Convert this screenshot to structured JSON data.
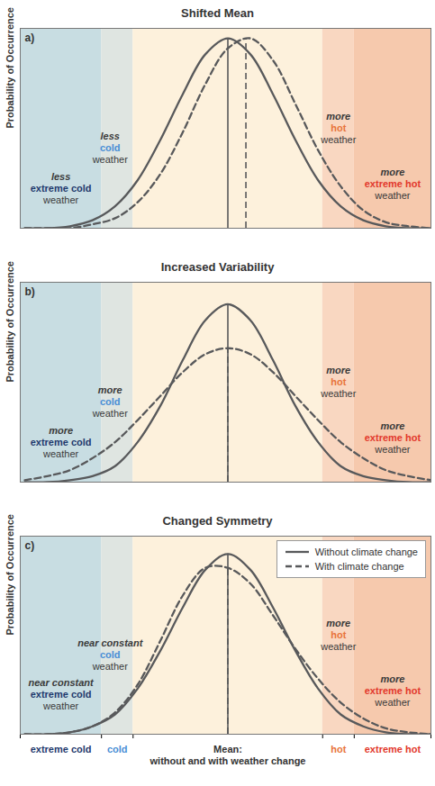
{
  "chart_data": [
    {
      "type": "line",
      "title": "Shifted Mean",
      "panel_label": "a)",
      "ylabel": "Probability of Occurrence",
      "xlim": [
        -4.6,
        4.5
      ],
      "ylim": [
        0,
        1
      ],
      "tick_labels": false,
      "x": [
        -4.5,
        -4,
        -3.5,
        -3,
        -2.5,
        -2,
        -1.5,
        -1,
        -0.5,
        0,
        0.5,
        1,
        1.5,
        2,
        2.5,
        3,
        3.5,
        4,
        4.5
      ],
      "bands": [
        {
          "name": "extreme cold",
          "xlim": [
            -4.6,
            -2.8
          ],
          "colors": [
            "#c8dde2",
            "#1f3a6e"
          ]
        },
        {
          "name": "cold",
          "xlim": [
            -2.8,
            -2.1
          ],
          "colors": [
            "#dfe5e1",
            "#4a8fd6"
          ]
        },
        {
          "xlim": [
            -2.1,
            2.1
          ],
          "colors": [
            "#fdf1dc"
          ]
        },
        {
          "name": "hot",
          "xlim": [
            2.1,
            2.8
          ],
          "colors": [
            "#f9d7c1",
            "#e8743b"
          ]
        },
        {
          "name": "extreme hot",
          "xlim": [
            2.8,
            4.5
          ],
          "colors": [
            "#f6c9ad",
            "#e2382c"
          ]
        }
      ],
      "series": [
        {
          "name": "Without climate change",
          "color": "#58595b",
          "line_style": "solid",
          "mean": 0,
          "values": [
            0,
            0,
            0.01,
            0.04,
            0.11,
            0.24,
            0.44,
            0.67,
            0.87,
            0.95,
            0.87,
            0.67,
            0.44,
            0.24,
            0.11,
            0.04,
            0.01,
            0,
            0
          ]
        },
        {
          "name": "With climate change",
          "color": "#58595b",
          "line_style": "dashed",
          "mean": 0.4,
          "values": [
            0,
            0,
            0,
            0.02,
            0.05,
            0.13,
            0.27,
            0.48,
            0.72,
            0.9,
            0.95,
            0.84,
            0.62,
            0.39,
            0.21,
            0.09,
            0.03,
            0.01,
            0
          ]
        }
      ],
      "annotations": [
        {
          "band": "extreme cold",
          "prefix": "less",
          "suffix": "weather"
        },
        {
          "band": "cold",
          "prefix": "less",
          "suffix": "weather"
        },
        {
          "band": "hot",
          "prefix": "more",
          "suffix": "weather"
        },
        {
          "band": "extreme hot",
          "prefix": "more",
          "suffix": "weather"
        }
      ]
    },
    {
      "type": "line",
      "title": "Increased Variability",
      "panel_label": "b)",
      "ylabel": "Probability of Occurrence",
      "xlim": [
        -4.6,
        4.5
      ],
      "ylim": [
        0,
        1
      ],
      "tick_labels": false,
      "x": [
        -4.5,
        -4,
        -3.5,
        -3,
        -2.5,
        -2,
        -1.5,
        -1,
        -0.5,
        0,
        0.5,
        1,
        1.5,
        2,
        2.5,
        3,
        3.5,
        4,
        4.5
      ],
      "bands": [
        {
          "name": "extreme cold",
          "xlim": [
            -4.6,
            -2.8
          ],
          "colors": [
            "#c8dde2",
            "#1f3a6e"
          ]
        },
        {
          "name": "cold",
          "xlim": [
            -2.8,
            -2.1
          ],
          "colors": [
            "#dfe5e1",
            "#4a8fd6"
          ]
        },
        {
          "xlim": [
            -2.1,
            2.1
          ],
          "colors": [
            "#fdf1dc"
          ]
        },
        {
          "name": "hot",
          "xlim": [
            2.1,
            2.8
          ],
          "colors": [
            "#f9d7c1",
            "#e8743b"
          ]
        },
        {
          "name": "extreme hot",
          "xlim": [
            2.8,
            4.5
          ],
          "colors": [
            "#f6c9ad",
            "#e2382c"
          ]
        }
      ],
      "series": [
        {
          "name": "Without climate change",
          "color": "#58595b",
          "line_style": "solid",
          "mean": 0,
          "values": [
            0,
            0,
            0.01,
            0.03,
            0.08,
            0.2,
            0.38,
            0.61,
            0.81,
            0.89,
            0.81,
            0.61,
            0.38,
            0.2,
            0.08,
            0.03,
            0.01,
            0,
            0
          ]
        },
        {
          "name": "With climate change",
          "color": "#58595b",
          "line_style": "dashed",
          "mean": 0,
          "values": [
            0.01,
            0.03,
            0.06,
            0.12,
            0.2,
            0.31,
            0.43,
            0.55,
            0.64,
            0.67,
            0.64,
            0.55,
            0.43,
            0.31,
            0.2,
            0.12,
            0.06,
            0.03,
            0.01
          ]
        }
      ],
      "annotations": [
        {
          "band": "extreme cold",
          "prefix": "more",
          "suffix": "weather"
        },
        {
          "band": "cold",
          "prefix": "more",
          "suffix": "weather"
        },
        {
          "band": "hot",
          "prefix": "more",
          "suffix": "weather"
        },
        {
          "band": "extreme hot",
          "prefix": "more",
          "suffix": "weather"
        }
      ]
    },
    {
      "type": "line",
      "title": "Changed Symmetry",
      "panel_label": "c)",
      "ylabel": "Probability of Occurrence",
      "xlabel": [
        "Mean:",
        "without and with weather change"
      ],
      "xlim": [
        -4.6,
        4.5
      ],
      "ylim": [
        0,
        1
      ],
      "tick_labels": "x",
      "legend": "top-right",
      "x": [
        -4.5,
        -4,
        -3.5,
        -3,
        -2.5,
        -2,
        -1.5,
        -1,
        -0.5,
        0,
        0.5,
        1,
        1.5,
        2,
        2.5,
        3,
        3.5,
        4,
        4.5
      ],
      "bands": [
        {
          "name": "extreme cold",
          "xlim": [
            -4.6,
            -2.8
          ],
          "colors": [
            "#c8dde2",
            "#1f3a6e"
          ]
        },
        {
          "name": "cold",
          "xlim": [
            -2.8,
            -2.1
          ],
          "colors": [
            "#dfe5e1",
            "#4a8fd6"
          ]
        },
        {
          "xlim": [
            -2.1,
            2.1
          ],
          "colors": [
            "#fdf1dc"
          ]
        },
        {
          "name": "hot",
          "xlim": [
            2.1,
            2.8
          ],
          "colors": [
            "#f9d7c1",
            "#e8743b"
          ]
        },
        {
          "name": "extreme hot",
          "xlim": [
            2.8,
            4.5
          ],
          "colors": [
            "#f6c9ad",
            "#e2382c"
          ]
        }
      ],
      "series": [
        {
          "name": "Without climate change",
          "color": "#58595b",
          "line_style": "solid",
          "mean": 0,
          "values": [
            0,
            0,
            0.01,
            0.04,
            0.1,
            0.23,
            0.42,
            0.64,
            0.83,
            0.91,
            0.83,
            0.64,
            0.42,
            0.23,
            0.1,
            0.04,
            0.01,
            0,
            0
          ]
        },
        {
          "name": "With climate change",
          "color": "#58595b",
          "line_style": "dashed",
          "mean": 0,
          "values": [
            0,
            0,
            0.01,
            0.04,
            0.11,
            0.25,
            0.47,
            0.7,
            0.84,
            0.84,
            0.76,
            0.6,
            0.43,
            0.28,
            0.16,
            0.08,
            0.03,
            0.01,
            0
          ]
        }
      ],
      "annotations": [
        {
          "band": "extreme cold",
          "prefix": "near constant",
          "suffix": "weather"
        },
        {
          "band": "cold",
          "prefix": "near constant",
          "suffix": "weather"
        },
        {
          "band": "hot",
          "prefix": "more",
          "suffix": "weather"
        },
        {
          "band": "extreme hot",
          "prefix": "more",
          "suffix": "weather"
        }
      ]
    }
  ]
}
